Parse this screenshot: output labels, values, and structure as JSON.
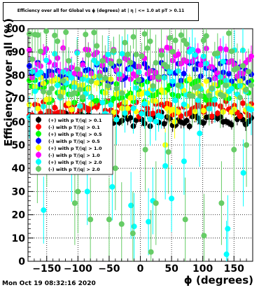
{
  "title": "Efficiency over all for Global vs ϕ (degrees) at | η | <= 1.0 at pT > 0.11",
  "timestamp": "Mon Oct 19 08:32:16 2020",
  "chart_data": {
    "type": "scatter",
    "xlabel": "ϕ (degrees)",
    "ylabel": "Efficiency over all (%)",
    "xlim": [
      -180,
      180
    ],
    "ylim": [
      0,
      100
    ],
    "xticks": [
      -150,
      -100,
      -50,
      0,
      50,
      100,
      150
    ],
    "yticks": [
      0,
      10,
      20,
      30,
      40,
      50,
      60,
      70,
      80,
      90,
      100
    ],
    "grid": true,
    "legend_position": "left-middle",
    "series": [
      {
        "name": "(+) with p T/|q| > 0.1",
        "color": "#000000",
        "band": [
          58,
          64
        ],
        "error": 2,
        "outliers": []
      },
      {
        "name": "(-) with p T/|q| > 0.1",
        "color": "#ff0000",
        "band": [
          62,
          69
        ],
        "error": 2,
        "outliers": []
      },
      {
        "name": "(+) with p T/|q| > 0.5",
        "color": "#00ff00",
        "band": [
          68,
          78
        ],
        "error": 3,
        "outliers": []
      },
      {
        "name": "(-) with p T/|q| > 0.5",
        "color": "#0000ff",
        "band": [
          76,
          86
        ],
        "error": 3,
        "outliers": []
      },
      {
        "name": "(+) with p T/|q| > 1.0",
        "color": "#ffff00",
        "band": [
          64,
          80
        ],
        "error": 4,
        "outliers": [
          [
            -100,
            48
          ],
          [
            40,
            50
          ],
          [
            55,
            60
          ]
        ]
      },
      {
        "name": "(-) with p T/|q| > 1.0",
        "color": "#ff00ff",
        "band": [
          78,
          92
        ],
        "error": 4,
        "outliers": []
      },
      {
        "name": "(+) with p T/|q| > 2.0",
        "color": "#00ffff",
        "band": [
          60,
          92
        ],
        "error": 8,
        "outliers": [
          [
            -155,
            22
          ],
          [
            -110,
            40
          ],
          [
            -85,
            30
          ],
          [
            -45,
            32
          ],
          [
            -15,
            24
          ],
          [
            -10,
            15
          ],
          [
            13,
            17
          ],
          [
            20,
            26
          ],
          [
            40,
            41
          ],
          [
            50,
            27
          ],
          [
            70,
            43
          ],
          [
            95,
            55
          ],
          [
            140,
            14
          ],
          [
            138,
            3
          ],
          [
            165,
            38
          ]
        ]
      },
      {
        "name": "(-) with p T/|q| > 2.0",
        "color": "#66cc66",
        "band": [
          70,
          100
        ],
        "error": 10,
        "outliers": [
          [
            -165,
            43
          ],
          [
            -150,
            50
          ],
          [
            -105,
            25
          ],
          [
            -100,
            30
          ],
          [
            -80,
            18
          ],
          [
            -50,
            18
          ],
          [
            -40,
            40
          ],
          [
            -30,
            16
          ],
          [
            -12,
            12
          ],
          [
            8,
            48
          ],
          [
            17,
            4
          ],
          [
            25,
            25
          ],
          [
            45,
            47
          ],
          [
            72,
            18
          ],
          [
            102,
            11
          ],
          [
            130,
            25
          ],
          [
            150,
            48
          ],
          [
            170,
            50
          ]
        ]
      }
    ]
  }
}
